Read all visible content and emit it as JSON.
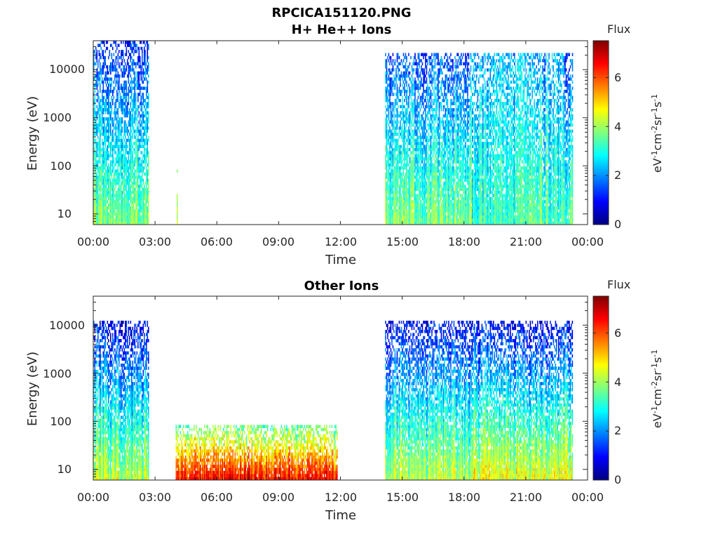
{
  "figure": {
    "title_line1": "RPCICA151120.PNG",
    "title_line2": "H+ He++ Ions"
  },
  "colorbar": {
    "label": "Flux",
    "colormap": "jet",
    "colors": [
      "#00007f",
      "#0000ff",
      "#007fff",
      "#00ffff",
      "#7fff7f",
      "#ffff00",
      "#ff7f00",
      "#ff0000",
      "#7f0000"
    ]
  },
  "chart_data": [
    {
      "type": "heatmap",
      "title": "H+ He++ Ions",
      "xlabel": "Time",
      "ylabel": "Energy (eV)",
      "y_scale": "log",
      "ylim": [
        6,
        40000
      ],
      "xlim": [
        "00:00",
        "24:00"
      ],
      "x_tick_labels": [
        "00:00",
        "03:00",
        "06:00",
        "09:00",
        "12:00",
        "15:00",
        "18:00",
        "21:00",
        "00:00"
      ],
      "y_tick_values": [
        10,
        100,
        1000,
        10000
      ],
      "y_tick_labels": [
        "10",
        "100",
        "1000",
        "10000"
      ],
      "colorbar": {
        "label": "Flux",
        "unit": "eV-1cm-2sr-1s-1",
        "range": [
          0,
          7.5
        ],
        "ticks": [
          "0",
          "2",
          "4",
          "6"
        ]
      },
      "data_intervals": [
        {
          "start": "00:00",
          "end": "02:40",
          "energy_max_eV": 40000,
          "flux_low_energy": 3.8,
          "flux_high_energy": 1.2
        },
        {
          "start": "04:03",
          "end": "04:06",
          "energy_max_eV": 80,
          "flux_low_energy": 3.8,
          "flux_high_energy": 3.0
        },
        {
          "start": "14:10",
          "end": "18:20",
          "energy_max_eV": 20000,
          "flux_low_energy": 3.8,
          "flux_high_energy": 1.5
        },
        {
          "start": "18:20",
          "end": "21:05",
          "energy_max_eV": 20000,
          "flux_low_energy": 3.2,
          "flux_high_energy": 2.2
        },
        {
          "start": "21:05",
          "end": "22:00",
          "energy_max_eV": 20000,
          "flux_low_energy": 3.5,
          "flux_high_energy": 2.0
        },
        {
          "start": "22:00",
          "end": "22:50",
          "energy_max_eV": 20000,
          "flux_low_energy": 3.4,
          "flux_high_energy": 2.3
        },
        {
          "start": "22:50",
          "end": "23:15",
          "energy_max_eV": 20000,
          "flux_low_energy": 3.5,
          "flux_high_energy": 1.5
        }
      ]
    },
    {
      "type": "heatmap",
      "title": "Other Ions",
      "xlabel": "Time",
      "ylabel": "Energy (eV)",
      "y_scale": "log",
      "ylim": [
        6,
        40000
      ],
      "xlim": [
        "00:00",
        "24:00"
      ],
      "x_tick_labels": [
        "00:00",
        "03:00",
        "06:00",
        "09:00",
        "12:00",
        "15:00",
        "18:00",
        "21:00",
        "00:00"
      ],
      "y_tick_values": [
        10,
        100,
        1000,
        10000
      ],
      "y_tick_labels": [
        "10",
        "100",
        "1000",
        "10000"
      ],
      "colorbar": {
        "label": "Flux",
        "unit": "eV-1cm-2sr-1s-1",
        "range": [
          0,
          7.5
        ],
        "ticks": [
          "0",
          "2",
          "4",
          "6"
        ]
      },
      "data_intervals": [
        {
          "start": "00:00",
          "end": "02:40",
          "energy_max_eV": 11000,
          "flux_low_energy": 4.2,
          "flux_high_energy": 0.9
        },
        {
          "start": "04:00",
          "end": "11:50",
          "energy_max_eV": 80,
          "flux_low_energy": 6.5,
          "flux_high_energy": 3.5
        },
        {
          "start": "14:10",
          "end": "18:20",
          "energy_max_eV": 11000,
          "flux_low_energy": 4.2,
          "flux_high_energy": 1.0
        },
        {
          "start": "18:20",
          "end": "23:15",
          "energy_max_eV": 11000,
          "flux_low_energy": 4.6,
          "flux_high_energy": 1.0
        }
      ]
    }
  ]
}
